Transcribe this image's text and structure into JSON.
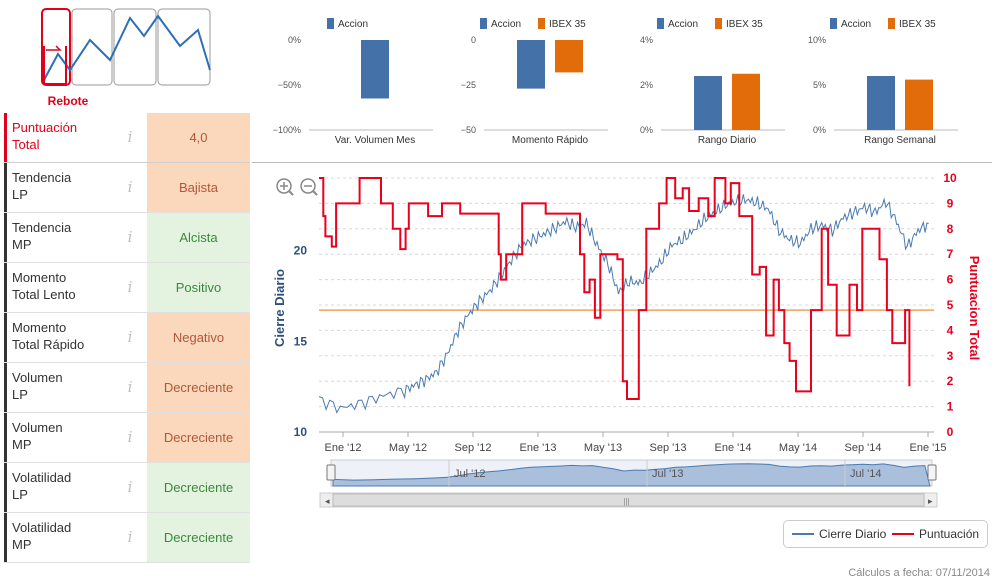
{
  "pattern": {
    "label": "Rebote",
    "colors": {
      "highlight": "#e0001b",
      "line": "#2e6fb7",
      "frame": "#999999"
    }
  },
  "indicators": [
    {
      "label": "Puntuación\nTotal",
      "value": "4,0",
      "tone": "orange",
      "highlight": true
    },
    {
      "label": "Tendencia\nLP",
      "value": "Bajista",
      "tone": "orange",
      "highlight": false
    },
    {
      "label": "Tendencia\nMP",
      "value": "Alcista",
      "tone": "green",
      "highlight": false
    },
    {
      "label": "Momento\nTotal Lento",
      "value": "Positivo",
      "tone": "green",
      "highlight": false
    },
    {
      "label": "Momento\nTotal Rápido",
      "value": "Negativo",
      "tone": "orange",
      "highlight": false
    },
    {
      "label": "Volumen\nLP",
      "value": "Decreciente",
      "tone": "orange",
      "highlight": false
    },
    {
      "label": "Volumen\nMP",
      "value": "Decreciente",
      "tone": "orange",
      "highlight": false
    },
    {
      "label": "Volatilidad\nLP",
      "value": "Decreciente",
      "tone": "green",
      "highlight": false
    },
    {
      "label": "Volatilidad\nMP",
      "value": "Decreciente",
      "tone": "green",
      "highlight": false
    }
  ],
  "chart_data": [
    {
      "type": "bar",
      "title": "Var. Volumen Mes",
      "series": [
        {
          "name": "Accion",
          "values": [
            -65
          ],
          "color": "#4472a8"
        }
      ],
      "yticks": [
        "0%",
        "−50%",
        "−100%"
      ],
      "ylim": [
        -100,
        0
      ]
    },
    {
      "type": "bar",
      "title": "Momento Rápido",
      "series": [
        {
          "name": "Accion",
          "values": [
            -27
          ],
          "color": "#4472a8"
        },
        {
          "name": "IBEX 35",
          "values": [
            -18
          ],
          "color": "#e36c0a"
        }
      ],
      "yticks": [
        "0",
        "−25",
        "−50"
      ],
      "ylim": [
        -50,
        0
      ]
    },
    {
      "type": "bar",
      "title": "Rango Diario",
      "series": [
        {
          "name": "Accion",
          "values": [
            2.4
          ],
          "color": "#4472a8"
        },
        {
          "name": "IBEX 35",
          "values": [
            2.5
          ],
          "color": "#e36c0a"
        }
      ],
      "yticks": [
        "4%",
        "2%",
        "0%"
      ],
      "ylim": [
        0,
        4
      ]
    },
    {
      "type": "bar",
      "title": "Rango Semanal",
      "series": [
        {
          "name": "Accion",
          "values": [
            6
          ],
          "color": "#4472a8"
        },
        {
          "name": "IBEX 35",
          "values": [
            5.6
          ],
          "color": "#e36c0a"
        }
      ],
      "yticks": [
        "10%",
        "5%",
        "0%"
      ],
      "ylim": [
        0,
        10
      ]
    },
    {
      "type": "line",
      "xlabels": [
        "Ene '12",
        "May '12",
        "Sep '12",
        "Ene '13",
        "May '13",
        "Sep '13",
        "Ene '14",
        "May '14",
        "Sep '14",
        "Ene '15"
      ],
      "left_axis": {
        "title": "Cierre Diario",
        "ticks": [
          "20",
          "15",
          "10"
        ],
        "ylim": [
          10,
          24
        ]
      },
      "right_axis": {
        "title": "Puntuacion Total",
        "ticks": [
          "10",
          "9",
          "8",
          "7",
          "6",
          "5",
          "4",
          "3",
          "2",
          "1",
          "0"
        ],
        "ylim": [
          0,
          10
        ]
      },
      "threshold": 4.8,
      "navigator_labels": [
        "Jul '12",
        "Jul '13",
        "Jul '14"
      ],
      "series": [
        {
          "name": "Cierre Diario",
          "color": "#4a7ab0",
          "points": [
            [
              0,
              11.8
            ],
            [
              2,
              11.3
            ],
            [
              4,
              11.6
            ],
            [
              6,
              12.0
            ],
            [
              8,
              12.3
            ],
            [
              9,
              12.6
            ],
            [
              10,
              12.9
            ],
            [
              11,
              13.3
            ],
            [
              12,
              14.3
            ],
            [
              13,
              15.6
            ],
            [
              14,
              16.5
            ],
            [
              15,
              17.2
            ],
            [
              16,
              17.8
            ],
            [
              17,
              18.6
            ],
            [
              18,
              19.5
            ],
            [
              19,
              20.3
            ],
            [
              20,
              20.6
            ],
            [
              21,
              20.9
            ],
            [
              22,
              21.2
            ],
            [
              23,
              21.6
            ],
            [
              24,
              21.3
            ],
            [
              25,
              21.5
            ],
            [
              26,
              20.3
            ],
            [
              27,
              19.3
            ],
            [
              28,
              17.7
            ],
            [
              29,
              18.3
            ],
            [
              30,
              18.2
            ],
            [
              31,
              18.8
            ],
            [
              32,
              19.4
            ],
            [
              33,
              20.3
            ],
            [
              34,
              20.6
            ],
            [
              35,
              21.1
            ],
            [
              36,
              21.7
            ],
            [
              37,
              22.1
            ],
            [
              38,
              22.5
            ],
            [
              39,
              22.7
            ],
            [
              40,
              22.8
            ],
            [
              41,
              22.6
            ],
            [
              42,
              22.3
            ],
            [
              43,
              21.1
            ],
            [
              44,
              20.6
            ],
            [
              45,
              20.4
            ],
            [
              46,
              21.2
            ],
            [
              47,
              21.4
            ],
            [
              48,
              21.1
            ],
            [
              49,
              21.8
            ],
            [
              50,
              22.1
            ],
            [
              51,
              22.4
            ],
            [
              52,
              22.1
            ],
            [
              53,
              22.7
            ],
            [
              54,
              21.6
            ],
            [
              55,
              20.2
            ],
            [
              56,
              21.1
            ],
            [
              57,
              21.5
            ]
          ]
        },
        {
          "name": "Puntuación",
          "color": "#e8001c",
          "points": [
            [
              0,
              10
            ],
            [
              0.4,
              8.5
            ],
            [
              0.6,
              7.7
            ],
            [
              0.9,
              7.7
            ],
            [
              1.2,
              7.3
            ],
            [
              1.6,
              9
            ],
            [
              3,
              9
            ],
            [
              3.8,
              10
            ],
            [
              5.5,
              10
            ],
            [
              5.8,
              9
            ],
            [
              6.9,
              8
            ],
            [
              7.6,
              7.2
            ],
            [
              8.1,
              8
            ],
            [
              8.4,
              9
            ],
            [
              9.6,
              9
            ],
            [
              10.2,
              8.5
            ],
            [
              10.9,
              8.5
            ],
            [
              11.5,
              9
            ],
            [
              12.5,
              9
            ],
            [
              13.2,
              8.6
            ],
            [
              14.6,
              8.6
            ],
            [
              15.5,
              8.6
            ],
            [
              16.3,
              8.6
            ],
            [
              16.8,
              7
            ],
            [
              17,
              6
            ],
            [
              17.5,
              7
            ],
            [
              18.4,
              7
            ],
            [
              19,
              9
            ],
            [
              20.3,
              9
            ],
            [
              21.2,
              8.6
            ],
            [
              22.8,
              8.6
            ],
            [
              23.5,
              8.6
            ],
            [
              24.4,
              7
            ],
            [
              24.8,
              5.5
            ],
            [
              25.3,
              6
            ],
            [
              25.8,
              4.5
            ],
            [
              26.3,
              7
            ],
            [
              27.3,
              7
            ],
            [
              27.9,
              6.8
            ],
            [
              28.4,
              2
            ],
            [
              28.8,
              1.3
            ],
            [
              29.3,
              1.3
            ],
            [
              29.9,
              4.8
            ],
            [
              30.6,
              8
            ],
            [
              31,
              8
            ],
            [
              31.8,
              9
            ],
            [
              32.5,
              10
            ],
            [
              33.3,
              9.2
            ],
            [
              34,
              9.6
            ],
            [
              34.6,
              8.7
            ],
            [
              35.5,
              9.2
            ],
            [
              36.4,
              8.5
            ],
            [
              37,
              10
            ],
            [
              38,
              9
            ],
            [
              38.5,
              9.8
            ],
            [
              39.3,
              8.5
            ],
            [
              40.5,
              6.2
            ],
            [
              41.2,
              6.5
            ],
            [
              41.8,
              3.8
            ],
            [
              42.5,
              6
            ],
            [
              43,
              4.8
            ],
            [
              43.5,
              3.5
            ],
            [
              44,
              2.8
            ],
            [
              44.6,
              1.6
            ],
            [
              45.3,
              1.6
            ],
            [
              46,
              4.8
            ],
            [
              46.7,
              4.8
            ],
            [
              47,
              8
            ],
            [
              47.6,
              5.8
            ],
            [
              48.4,
              3.8
            ],
            [
              49,
              3.8
            ],
            [
              49.6,
              5.8
            ],
            [
              50.3,
              4.8
            ],
            [
              50.8,
              8
            ],
            [
              51.6,
              8
            ],
            [
              52.4,
              6.8
            ],
            [
              53.1,
              4.8
            ],
            [
              53.6,
              3.5
            ],
            [
              54.2,
              3.5
            ],
            [
              54.8,
              4.8
            ],
            [
              55.2,
              1.8
            ]
          ]
        }
      ]
    }
  ],
  "legend": {
    "items": [
      "Cierre Diario",
      "Puntuación"
    ]
  },
  "footer": {
    "note": "Cálculos a fecha: 07/11/2014"
  }
}
